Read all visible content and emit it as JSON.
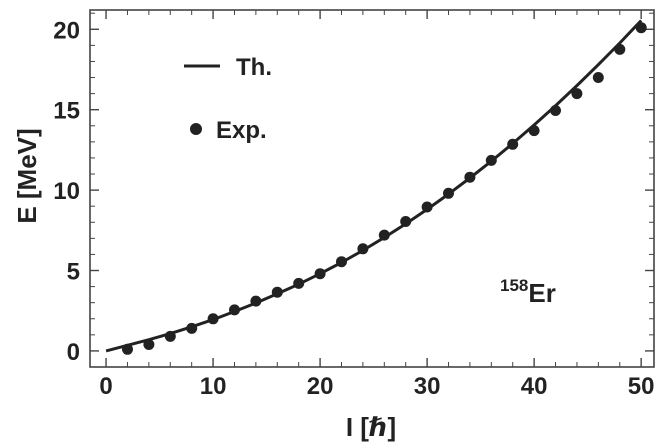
{
  "chart_data": {
    "type": "line",
    "xlabel": "I [ℏ]",
    "ylabel": "E [MeV]",
    "xlim": [
      -1.5,
      51.2
    ],
    "ylim": [
      -1.0,
      21.2
    ],
    "xticks": [
      0,
      10,
      20,
      30,
      40,
      50
    ],
    "yticks": [
      0,
      5,
      10,
      15,
      20
    ],
    "grid": false,
    "legend": {
      "placement": "top-left",
      "entries": [
        {
          "label": "Th.",
          "marker": "line"
        },
        {
          "label": "Exp.",
          "marker": "dot"
        }
      ]
    },
    "annotation": {
      "sup": "158",
      "text": "Er"
    },
    "series": [
      {
        "name": "Th.",
        "kind": "line",
        "x": [
          0,
          2,
          4,
          6,
          8,
          10,
          12,
          14,
          16,
          18,
          20,
          22,
          24,
          26,
          28,
          30,
          32,
          34,
          36,
          38,
          40,
          42,
          44,
          46,
          48,
          50
        ],
        "y": [
          0.0,
          0.35,
          0.7,
          1.08,
          1.5,
          1.95,
          2.45,
          2.98,
          3.55,
          4.15,
          4.8,
          5.5,
          6.25,
          7.05,
          7.9,
          8.8,
          9.75,
          10.75,
          11.8,
          12.9,
          14.05,
          15.25,
          16.5,
          17.8,
          19.15,
          20.55
        ]
      },
      {
        "name": "Exp.",
        "kind": "scatter",
        "x": [
          2,
          4,
          6,
          8,
          10,
          12,
          14,
          16,
          18,
          20,
          22,
          24,
          26,
          28,
          30,
          32,
          34,
          36,
          38,
          40,
          42,
          44,
          46,
          48,
          50
        ],
        "y": [
          0.1,
          0.4,
          0.9,
          1.4,
          2.0,
          2.55,
          3.1,
          3.65,
          4.2,
          4.8,
          5.55,
          6.35,
          7.2,
          8.05,
          8.95,
          9.8,
          10.8,
          11.85,
          12.85,
          13.7,
          14.95,
          16.0,
          17.0,
          18.75,
          20.1
        ]
      }
    ]
  }
}
